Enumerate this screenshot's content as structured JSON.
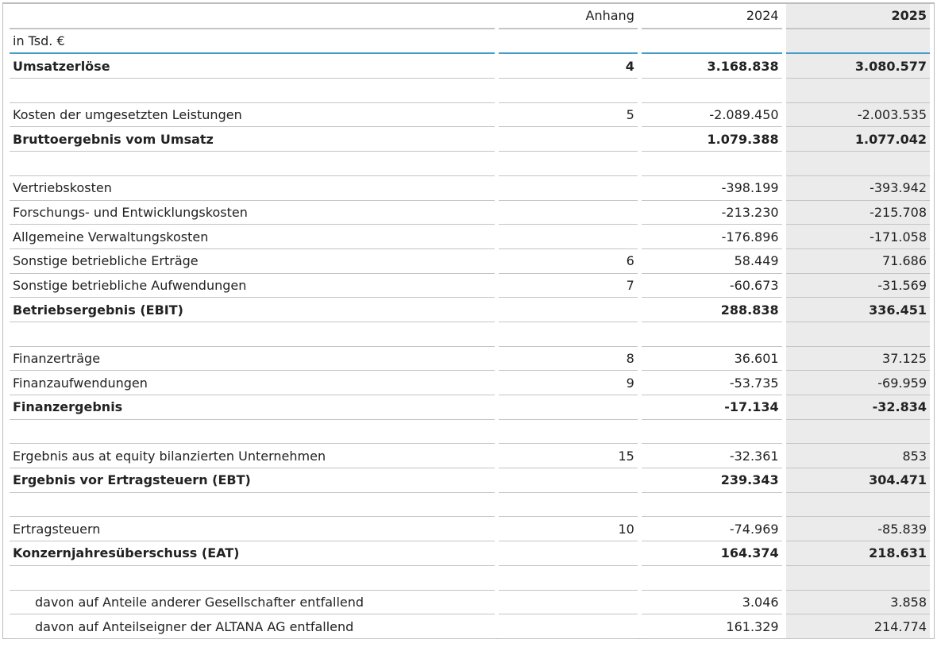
{
  "table": {
    "header": {
      "note": "Anhang",
      "y2024": "2024",
      "y2025": "2025"
    },
    "unit": "in Tsd. €",
    "groups": [
      [
        {
          "label": "Umsatzerlöse",
          "note": "4",
          "y2024": "3.168.838",
          "y2025": "3.080.577",
          "bold": true
        }
      ],
      [
        {
          "label": "Kosten der umgesetzten Leistungen",
          "note": "5",
          "y2024": "-2.089.450",
          "y2025": "-2.003.535"
        },
        {
          "label": "Bruttoergebnis vom Umsatz",
          "y2024": "1.079.388",
          "y2025": "1.077.042",
          "bold": true
        }
      ],
      [
        {
          "label": "Vertriebskosten",
          "y2024": "-398.199",
          "y2025": "-393.942"
        },
        {
          "label": "Forschungs- und Entwicklungskosten",
          "y2024": "-213.230",
          "y2025": "-215.708"
        },
        {
          "label": "Allgemeine Verwaltungskosten",
          "y2024": "-176.896",
          "y2025": "-171.058"
        },
        {
          "label": "Sonstige betriebliche Erträge",
          "note": "6",
          "y2024": "58.449",
          "y2025": "71.686"
        },
        {
          "label": "Sonstige betriebliche Aufwendungen",
          "note": "7",
          "y2024": "-60.673",
          "y2025": "-31.569"
        },
        {
          "label": "Betriebsergebnis (EBIT)",
          "y2024": "288.838",
          "y2025": "336.451",
          "bold": true
        }
      ],
      [
        {
          "label": "Finanzerträge",
          "note": "8",
          "y2024": "36.601",
          "y2025": "37.125"
        },
        {
          "label": "Finanzaufwendungen",
          "note": "9",
          "y2024": "-53.735",
          "y2025": "-69.959"
        },
        {
          "label": "Finanzergebnis",
          "y2024": "-17.134",
          "y2025": "-32.834",
          "bold": true
        }
      ],
      [
        {
          "label": "Ergebnis aus at equity bilanzierten Unternehmen",
          "note": "15",
          "y2024": "-32.361",
          "y2025": "853"
        },
        {
          "label": "Ergebnis vor Ertragsteuern (EBT)",
          "y2024": "239.343",
          "y2025": "304.471",
          "bold": true
        }
      ],
      [
        {
          "label": "Ertragsteuern",
          "note": "10",
          "y2024": "-74.969",
          "y2025": "-85.839"
        },
        {
          "label": "Konzernjahresüberschuss (EAT)",
          "y2024": "164.374",
          "y2025": "218.631",
          "bold": true
        }
      ],
      [
        {
          "label": "davon auf Anteile anderer Gesellschafter entfallend",
          "y2024": "3.046",
          "y2025": "3.858",
          "indent": true
        },
        {
          "label": "davon auf Anteilseigner der ALTANA AG entfallend",
          "y2024": "161.329",
          "y2025": "214.774",
          "indent": true
        }
      ]
    ]
  }
}
